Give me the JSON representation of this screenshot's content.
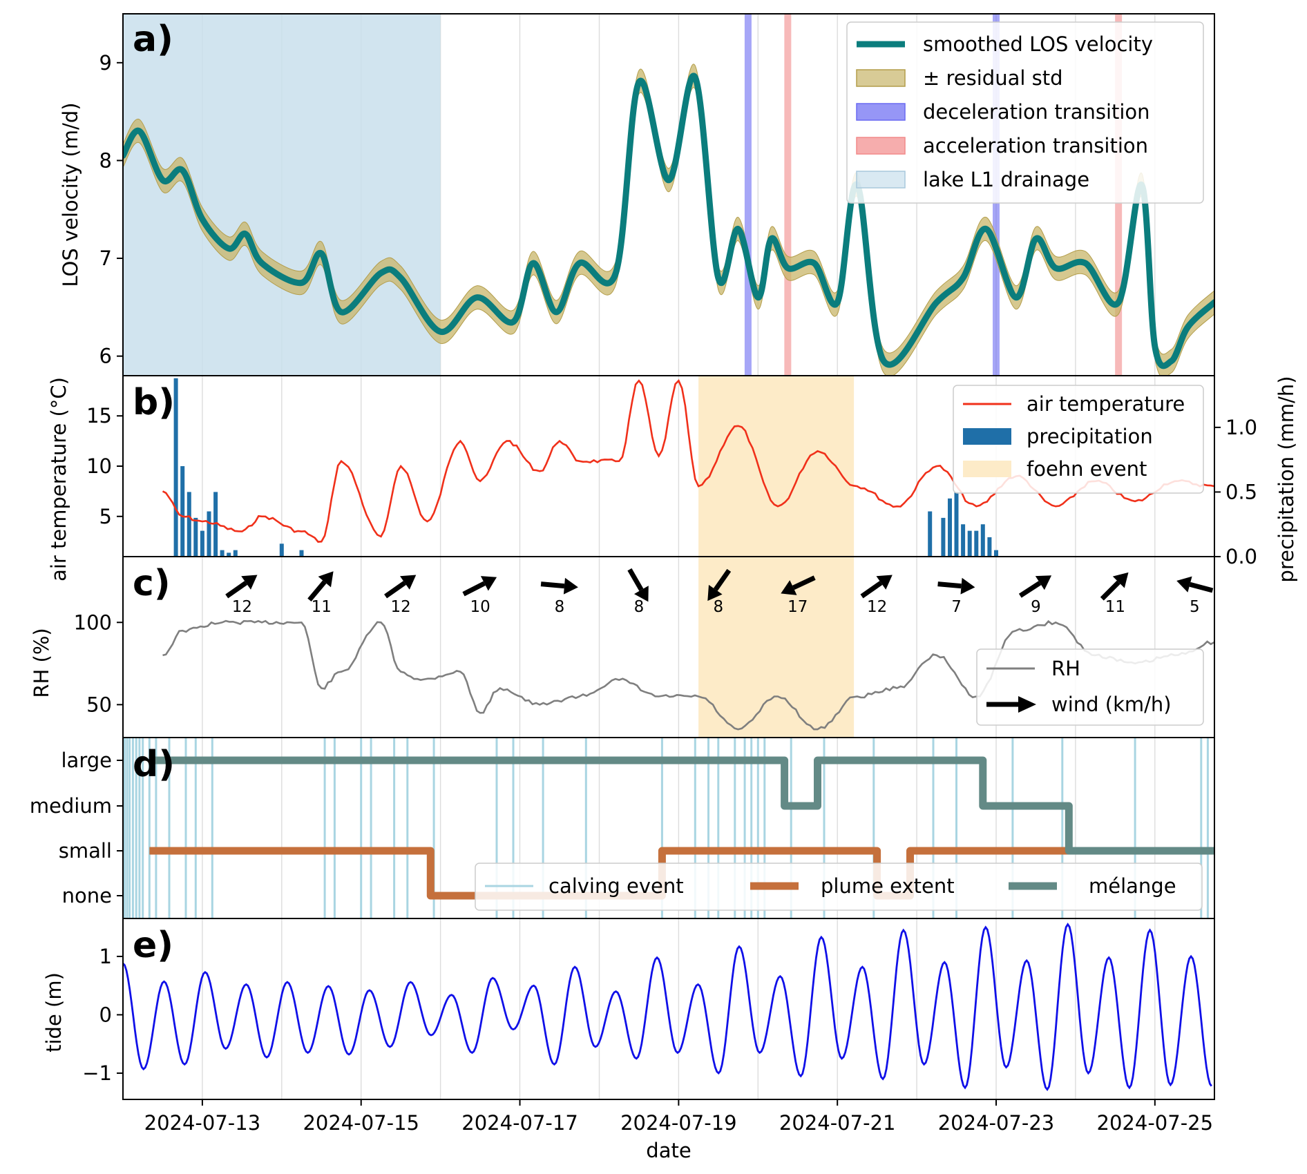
{
  "figure": {
    "xlabel": "date",
    "x_range": [
      "2024-07-12 00:00",
      "2024-07-25 18:00"
    ],
    "x_ticks": [
      "2024-07-13",
      "2024-07-15",
      "2024-07-17",
      "2024-07-19",
      "2024-07-21",
      "2024-07-23",
      "2024-07-25"
    ],
    "vertical_gridlines": "daily"
  },
  "chart_data": [
    {
      "panel": "a)",
      "type": "line",
      "ylabel": "LOS velocity (m/d)",
      "ylim": [
        5.8,
        9.5
      ],
      "yticks": [
        6,
        7,
        8,
        9
      ],
      "legend_position": "top-right",
      "legend": [
        "smoothed LOS velocity",
        "± residual std",
        "deceleration transition",
        "acceleration transition",
        "lake L1 drainage"
      ],
      "colors": {
        "line": "#0b7d7d",
        "band": "#c8b56a",
        "decel": "#6a6af2",
        "accel": "#f28a8a",
        "lake": "#c9dfec"
      },
      "lake_drainage": {
        "start": "2024-07-12 00:00",
        "end": "2024-07-16 00:00"
      },
      "deceleration_transitions": [
        "2024-07-19 21:00",
        "2024-07-23 00:00"
      ],
      "acceleration_transitions": [
        "2024-07-20 09:00",
        "2024-07-24 13:00"
      ],
      "series": [
        {
          "name": "smoothed LOS velocity",
          "x": [
            "2024-07-12 00:00",
            "2024-07-12 05:00",
            "2024-07-12 12:00",
            "2024-07-12 18:00",
            "2024-07-13 00:00",
            "2024-07-13 08:00",
            "2024-07-13 13:00",
            "2024-07-13 18:00",
            "2024-07-14 06:00",
            "2024-07-14 12:00",
            "2024-07-14 18:00",
            "2024-07-15 06:00",
            "2024-07-15 12:00",
            "2024-07-16 00:00",
            "2024-07-16 11:00",
            "2024-07-16 22:00",
            "2024-07-17 04:00",
            "2024-07-17 11:00",
            "2024-07-17 18:00",
            "2024-07-18 05:00",
            "2024-07-18 12:00",
            "2024-07-18 21:00",
            "2024-07-19 05:00",
            "2024-07-19 12:00",
            "2024-07-19 18:00",
            "2024-07-20 00:00",
            "2024-07-20 04:00",
            "2024-07-20 09:00",
            "2024-07-20 17:00",
            "2024-07-21 00:00",
            "2024-07-21 06:00",
            "2024-07-21 14:00",
            "2024-07-22 06:00",
            "2024-07-22 14:00",
            "2024-07-22 21:00",
            "2024-07-23 06:00",
            "2024-07-23 12:00",
            "2024-07-23 18:00",
            "2024-07-24 03:00",
            "2024-07-24 13:00",
            "2024-07-24 20:00",
            "2024-07-25 00:00",
            "2024-07-25 05:00",
            "2024-07-25 10:00",
            "2024-07-25 18:00"
          ],
          "y": [
            8.05,
            8.3,
            7.8,
            7.9,
            7.4,
            7.1,
            7.25,
            6.95,
            6.75,
            7.05,
            6.45,
            6.85,
            6.8,
            6.25,
            6.6,
            6.35,
            6.95,
            6.45,
            6.95,
            6.85,
            8.8,
            7.8,
            8.85,
            6.8,
            7.3,
            6.6,
            7.2,
            6.9,
            6.95,
            6.55,
            7.75,
            5.95,
            6.55,
            6.8,
            7.3,
            6.6,
            7.2,
            6.9,
            6.95,
            6.55,
            7.75,
            6.1,
            5.95,
            6.3,
            6.55
          ],
          "residual_std": 0.12
        }
      ]
    },
    {
      "panel": "b)",
      "type": "line",
      "ylabel": "air temperature (°C)",
      "ylabel_right": "precipitation (mm/h)",
      "ylim": [
        1,
        19
      ],
      "yticks": [
        5,
        10,
        15
      ],
      "ylim_right": [
        0,
        1.4
      ],
      "yticks_right": [
        "0.0",
        "0.5",
        "1.0"
      ],
      "legend_position": "top-right",
      "legend": [
        "air temperature",
        "precipitation",
        "foehn event"
      ],
      "colors": {
        "temperature": "#f0301a",
        "precipitation": "#1f6fa8",
        "foehn": "#fdebc8"
      },
      "foehn_event": {
        "start": "2024-07-19 06:00",
        "end": "2024-07-21 05:00"
      },
      "series": [
        {
          "name": "air temperature",
          "x": [
            "2024-07-12 12:00",
            "2024-07-12 18:00",
            "2024-07-13 00:00",
            "2024-07-13 12:00",
            "2024-07-13 18:00",
            "2024-07-14 06:00",
            "2024-07-14 12:00",
            "2024-07-14 18:00",
            "2024-07-15 06:00",
            "2024-07-15 12:00",
            "2024-07-15 20:00",
            "2024-07-16 06:00",
            "2024-07-16 12:00",
            "2024-07-16 20:00",
            "2024-07-17 06:00",
            "2024-07-17 12:00",
            "2024-07-17 18:00",
            "2024-07-18 06:00",
            "2024-07-18 12:00",
            "2024-07-18 18:00",
            "2024-07-19 00:00",
            "2024-07-19 06:00",
            "2024-07-19 18:00",
            "2024-07-20 06:00",
            "2024-07-20 18:00",
            "2024-07-21 06:00",
            "2024-07-21 18:00",
            "2024-07-22 06:00",
            "2024-07-22 18:00",
            "2024-07-23 06:00",
            "2024-07-23 18:00",
            "2024-07-24 06:00",
            "2024-07-24 18:00",
            "2024-07-25 06:00",
            "2024-07-25 18:00"
          ],
          "y": [
            7.5,
            5.0,
            4.5,
            3.5,
            5.0,
            3.5,
            2.5,
            10.5,
            3.0,
            10.0,
            4.5,
            12.5,
            8.5,
            12.5,
            9.5,
            12.5,
            10.5,
            10.5,
            18.5,
            11.0,
            18.5,
            8.0,
            14.0,
            6.0,
            11.5,
            8.0,
            6.0,
            10.0,
            6.0,
            9.0,
            6.0,
            8.5,
            6.5,
            8.5,
            8.0
          ]
        },
        {
          "name": "precipitation",
          "x": [
            "2024-07-12 16:00",
            "2024-07-12 18:00",
            "2024-07-12 20:00",
            "2024-07-12 22:00",
            "2024-07-13 00:00",
            "2024-07-13 02:00",
            "2024-07-13 04:00",
            "2024-07-13 06:00",
            "2024-07-13 08:00",
            "2024-07-13 10:00",
            "2024-07-14 00:00",
            "2024-07-14 06:00",
            "2024-07-22 04:00",
            "2024-07-22 08:00",
            "2024-07-22 10:00",
            "2024-07-22 12:00",
            "2024-07-22 14:00",
            "2024-07-22 16:00",
            "2024-07-22 18:00",
            "2024-07-22 20:00",
            "2024-07-22 22:00",
            "2024-07-23 00:00"
          ],
          "y": [
            1.38,
            0.7,
            0.5,
            0.3,
            0.2,
            0.35,
            0.5,
            0.05,
            0.03,
            0.05,
            0.1,
            0.05,
            0.35,
            0.3,
            0.45,
            0.5,
            0.25,
            0.2,
            0.2,
            0.25,
            0.15,
            0.05
          ]
        }
      ]
    },
    {
      "panel": "c)",
      "type": "line",
      "ylabel": "RH (%)",
      "ylim": [
        30,
        140
      ],
      "yticks": [
        50,
        100
      ],
      "legend_position": "bottom-right",
      "legend": [
        "RH",
        "wind (km/h)"
      ],
      "colors": {
        "rh": "#7f7f7f"
      },
      "series": [
        {
          "name": "RH",
          "x": [
            "2024-07-12 12:00",
            "2024-07-12 18:00",
            "2024-07-13 06:00",
            "2024-07-13 18:00",
            "2024-07-14 06:00",
            "2024-07-14 12:00",
            "2024-07-14 18:00",
            "2024-07-15 06:00",
            "2024-07-15 12:00",
            "2024-07-15 18:00",
            "2024-07-16 06:00",
            "2024-07-16 12:00",
            "2024-07-16 18:00",
            "2024-07-17 06:00",
            "2024-07-17 18:00",
            "2024-07-18 06:00",
            "2024-07-18 18:00",
            "2024-07-19 06:00",
            "2024-07-19 18:00",
            "2024-07-20 06:00",
            "2024-07-20 18:00",
            "2024-07-21 06:00",
            "2024-07-21 18:00",
            "2024-07-22 06:00",
            "2024-07-22 18:00",
            "2024-07-23 06:00",
            "2024-07-23 18:00",
            "2024-07-24 06:00",
            "2024-07-24 18:00",
            "2024-07-25 06:00",
            "2024-07-25 18:00"
          ],
          "y": [
            80,
            95,
            100,
            100,
            100,
            60,
            70,
            100,
            70,
            65,
            70,
            45,
            60,
            50,
            55,
            65,
            55,
            55,
            35,
            55,
            35,
            55,
            60,
            80,
            55,
            95,
            100,
            80,
            75,
            80,
            88
          ]
        }
      ],
      "wind": {
        "x": [
          "2024-07-13 12:00",
          "2024-07-14 12:00",
          "2024-07-15 12:00",
          "2024-07-16 12:00",
          "2024-07-17 12:00",
          "2024-07-18 12:00",
          "2024-07-19 12:00",
          "2024-07-20 12:00",
          "2024-07-21 12:00",
          "2024-07-22 12:00",
          "2024-07-23 12:00",
          "2024-07-24 12:00",
          "2024-07-25 12:00"
        ],
        "speed": [
          12,
          11,
          12,
          10,
          8,
          8,
          8,
          17,
          12,
          7,
          9,
          11,
          5
        ],
        "speed_labels": [
          "12",
          "11",
          "12",
          "10",
          "8",
          "8",
          "8",
          "17",
          "12",
          "7",
          "9",
          "11",
          "5"
        ],
        "direction_deg": [
          35,
          50,
          35,
          27,
          -5,
          -60,
          -125,
          -155,
          35,
          -5,
          33,
          45,
          165
        ]
      }
    },
    {
      "panel": "d)",
      "type": "line",
      "y_categories": [
        "none",
        "small",
        "medium",
        "large"
      ],
      "legend_position": "bottom",
      "legend": [
        "calving event",
        "plume extent",
        "mélange"
      ],
      "colors": {
        "calving": "#a9d5e2",
        "plume": "#c5703c",
        "melange": "#638a86"
      },
      "series": [
        {
          "name": "plume extent",
          "x": [
            "2024-07-12 08:00",
            "2024-07-15 21:00",
            "2024-07-15 21:00",
            "2024-07-18 19:00",
            "2024-07-18 19:00",
            "2024-07-21 12:00",
            "2024-07-21 12:00",
            "2024-07-21 22:00",
            "2024-07-21 22:00",
            "2024-07-25 18:00"
          ],
          "y": [
            "small",
            "small",
            "none",
            "none",
            "small",
            "small",
            "none",
            "none",
            "small",
            "small"
          ]
        },
        {
          "name": "mélange",
          "x": [
            "2024-07-12 08:00",
            "2024-07-20 08:00",
            "2024-07-20 08:00",
            "2024-07-20 18:00",
            "2024-07-20 18:00",
            "2024-07-22 20:00",
            "2024-07-22 20:00",
            "2024-07-23 22:00",
            "2024-07-23 22:00",
            "2024-07-25 18:00"
          ],
          "y": [
            "large",
            "large",
            "medium",
            "medium",
            "large",
            "large",
            "medium",
            "medium",
            "small",
            "small"
          ]
        }
      ],
      "calving_events": [
        "2024-07-12 00:30",
        "2024-07-12 01:15",
        "2024-07-12 02:00",
        "2024-07-12 03:00",
        "2024-07-12 04:00",
        "2024-07-12 05:00",
        "2024-07-12 06:00",
        "2024-07-12 08:00",
        "2024-07-12 10:00",
        "2024-07-12 14:00",
        "2024-07-12 19:00",
        "2024-07-12 22:00",
        "2024-07-13 03:00",
        "2024-07-14 13:00",
        "2024-07-14 16:00",
        "2024-07-15 00:00",
        "2024-07-15 03:00",
        "2024-07-15 10:00",
        "2024-07-15 14:00",
        "2024-07-15 22:00",
        "2024-07-16 17:00",
        "2024-07-16 22:00",
        "2024-07-17 07:00",
        "2024-07-17 20:00",
        "2024-07-18 19:00",
        "2024-07-19 05:00",
        "2024-07-19 09:00",
        "2024-07-19 12:00",
        "2024-07-19 17:00",
        "2024-07-19 20:00",
        "2024-07-19 22:00",
        "2024-07-20 00:00",
        "2024-07-20 02:00",
        "2024-07-20 10:00",
        "2024-07-20 20:00",
        "2024-07-21 11:00",
        "2024-07-22 05:00",
        "2024-07-22 12:00",
        "2024-07-23 05:00",
        "2024-07-23 20:00",
        "2024-07-24 18:00",
        "2024-07-25 14:00",
        "2024-07-25 16:00"
      ]
    },
    {
      "panel": "e)",
      "type": "line",
      "ylabel": "tide (m)",
      "ylim": [
        -1.45,
        1.65
      ],
      "yticks": [
        -1,
        0,
        1
      ],
      "colors": {
        "tide": "#1010e8"
      },
      "series": [
        {
          "name": "tide",
          "period_hours": 12.42,
          "first_peak": "2024-07-12 00:00",
          "peaks": [
            0.88,
            0.57,
            0.73,
            0.52,
            0.56,
            0.49,
            0.42,
            0.56,
            0.34,
            0.63,
            0.5,
            0.82,
            0.4,
            0.98,
            0.52,
            1.17,
            0.66,
            1.33,
            0.82,
            1.45,
            0.9,
            1.5,
            0.93,
            1.55,
            0.98,
            1.45,
            1.0
          ],
          "troughs": [
            -0.93,
            -0.85,
            -0.58,
            -0.73,
            -0.65,
            -0.68,
            -0.55,
            -0.35,
            -0.65,
            -0.25,
            -0.85,
            -0.55,
            -0.75,
            -0.65,
            -1.0,
            -0.65,
            -1.05,
            -0.75,
            -1.1,
            -0.85,
            -1.25,
            -0.9,
            -1.28,
            -1.0,
            -1.25,
            -1.2,
            -1.22
          ]
        }
      ]
    }
  ]
}
